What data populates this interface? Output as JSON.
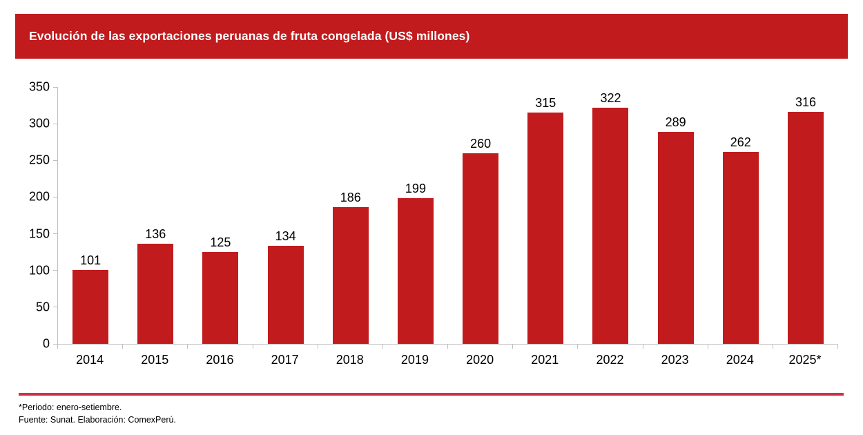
{
  "header": {
    "title": "Evolución de las exportaciones peruanas de fruta congelada (US$ millones)",
    "background_color": "#C11B1E",
    "text_color": "#FFFFFF"
  },
  "chart_data": {
    "type": "bar",
    "title": "Evolución de las exportaciones peruanas de fruta congelada (US$ millones)",
    "categories": [
      "2014",
      "2015",
      "2016",
      "2017",
      "2018",
      "2019",
      "2020",
      "2021",
      "2022",
      "2023",
      "2024",
      "2025*"
    ],
    "values": [
      101,
      136,
      125,
      134,
      186,
      199,
      260,
      315,
      322,
      289,
      262,
      316
    ],
    "xlabel": "",
    "ylabel": "",
    "ylim": [
      0,
      350
    ],
    "yticks": [
      0,
      50,
      100,
      150,
      200,
      250,
      300,
      350
    ],
    "bar_color": "#C11B1E",
    "axis_color": "#BFBFBF",
    "grid": false,
    "data_labels": true,
    "legend": "none"
  },
  "footer": {
    "divider_color": "#CE3345",
    "note": "*Periodo: enero-setiembre.",
    "source": "Fuente: Sunat. Elaboración: ComexPerú."
  }
}
